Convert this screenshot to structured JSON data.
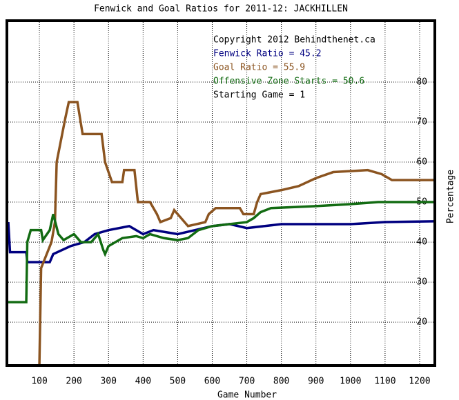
{
  "chart_data": {
    "type": "line",
    "title": "Fenwick and Goal Ratios for 2011-12: JACKHILLEN",
    "x_label": "Game Number",
    "y_label": "Percentage",
    "annotations": [
      "Copyright 2012 Behindthenet.ca",
      "Starting Game = 1"
    ],
    "xlim": [
      10,
      1240
    ],
    "ylim": [
      9.5,
      95
    ],
    "xticks": [
      100,
      200,
      300,
      400,
      500,
      600,
      700,
      800,
      900,
      1000,
      1100,
      1200
    ],
    "yticks": [
      20,
      30,
      40,
      50,
      60,
      70,
      80
    ],
    "grid": true,
    "series": [
      {
        "name": "Fenwick Ratio = 45.2",
        "color": "#000080",
        "x": [
          10,
          15,
          62,
          65,
          130,
          140,
          190,
          230,
          260,
          300,
          360,
          400,
          430,
          500,
          550,
          600,
          650,
          700,
          750,
          800,
          1000,
          1100,
          1240
        ],
        "values": [
          45,
          37.5,
          37.5,
          35,
          35,
          37,
          39,
          40,
          42,
          43,
          44,
          42,
          43,
          42,
          43,
          44,
          44.5,
          43.5,
          44,
          44.5,
          44.5,
          45,
          45.2
        ]
      },
      {
        "name": "Goal Ratio = 55.9",
        "color": "#8b5420",
        "x": [
          100,
          105,
          135,
          145,
          150,
          175,
          185,
          210,
          225,
          280,
          290,
          310,
          340,
          345,
          375,
          385,
          420,
          440,
          450,
          480,
          490,
          510,
          530,
          580,
          590,
          610,
          680,
          690,
          720,
          730,
          740,
          800,
          850,
          900,
          950,
          1050,
          1090,
          1120,
          1240
        ],
        "values": [
          9.5,
          33.5,
          40,
          45,
          60,
          71,
          75,
          75,
          67,
          67,
          60,
          55,
          55,
          58,
          58,
          50,
          50,
          47,
          45,
          46,
          48,
          46,
          44,
          45,
          47,
          48.5,
          48.5,
          47,
          47,
          50,
          52,
          53,
          54,
          56,
          57.5,
          58,
          57,
          55.5,
          55.5
        ]
      },
      {
        "name": "Offensive Zone Starts = 50.6",
        "color": "#126b12",
        "x": [
          10,
          62,
          65,
          75,
          105,
          110,
          130,
          140,
          155,
          170,
          200,
          220,
          250,
          270,
          285,
          290,
          300,
          340,
          380,
          400,
          420,
          460,
          500,
          530,
          560,
          600,
          700,
          720,
          740,
          770,
          900,
          1000,
          1080,
          1240
        ],
        "values": [
          25,
          25,
          40,
          43,
          43,
          40.5,
          43,
          47,
          42,
          40.5,
          42,
          40,
          40,
          42,
          38,
          37,
          39,
          41,
          41.5,
          41,
          42,
          41,
          40.5,
          41,
          43,
          44,
          45,
          46,
          47.5,
          48.5,
          49,
          49.5,
          50,
          50
        ]
      }
    ]
  }
}
